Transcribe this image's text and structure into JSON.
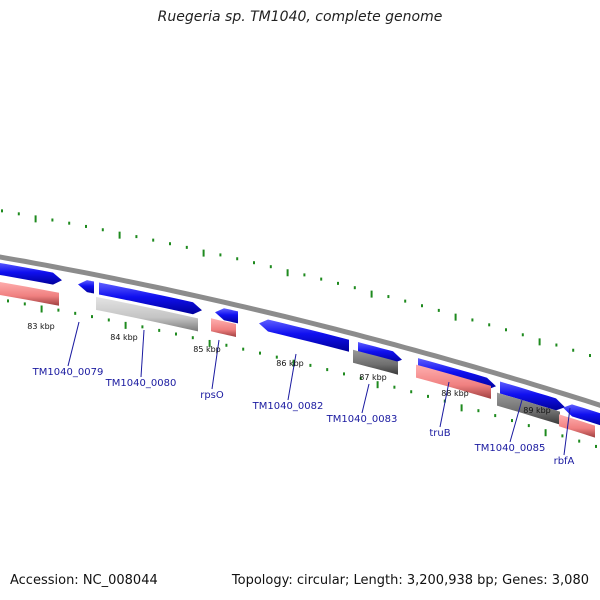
{
  "title": "Ruegeria sp. TM1040, complete genome",
  "footer": {
    "accession": "Accession: NC_008044",
    "summary": "Topology: circular; Length: 3,200,938 bp; Genes: 3,080"
  },
  "colors": {
    "forward_cds": "#1010f0",
    "reverse_cds": "#f08080",
    "gene_other_light": "#c8c8c8",
    "gene_other_dark": "#707070",
    "backbone": "#888888",
    "ticks": "#1e8a1e",
    "label": "#1a1aa0"
  },
  "kbp_markers": [
    "83 kbp",
    "84 kbp",
    "85 kbp",
    "86 kbp",
    "87 kbp",
    "88 kbp",
    "89 kbp"
  ],
  "genes": [
    {
      "label": "TM1040_0079"
    },
    {
      "label": "TM1040_0080"
    },
    {
      "label": "rpsO"
    },
    {
      "label": "TM1040_0082"
    },
    {
      "label": "TM1040_0083"
    },
    {
      "label": "truB"
    },
    {
      "label": "TM1040_0085"
    },
    {
      "label": "rbfA"
    }
  ]
}
